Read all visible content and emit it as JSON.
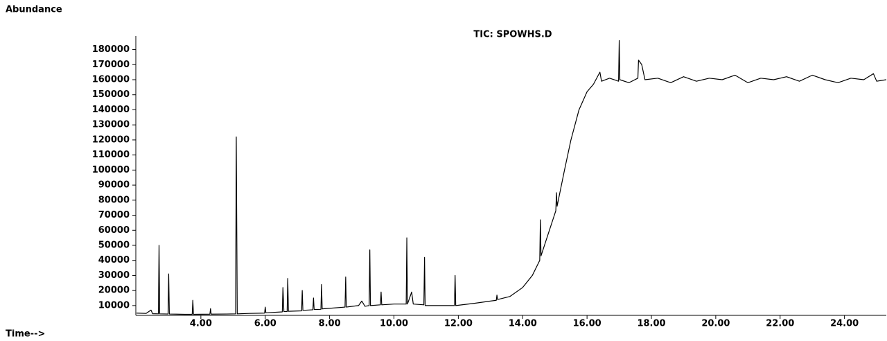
{
  "chart_data": {
    "type": "line",
    "title": "TIC: SPOWHS.D",
    "ylabel": "Abundance",
    "xlabel": "Time-->",
    "x": [
      2.0,
      2.3,
      2.45,
      2.5,
      2.68,
      2.7,
      2.72,
      2.98,
      3.0,
      3.02,
      3.5,
      3.73,
      3.75,
      3.77,
      4.28,
      4.3,
      4.32,
      4.8,
      5.08,
      5.1,
      5.13,
      5.5,
      5.98,
      6.0,
      6.02,
      6.53,
      6.55,
      6.58,
      6.68,
      6.7,
      6.72,
      7.13,
      7.15,
      7.17,
      7.48,
      7.5,
      7.52,
      7.73,
      7.75,
      7.77,
      8.2,
      8.48,
      8.5,
      8.52,
      8.9,
      9.0,
      9.1,
      9.23,
      9.25,
      9.27,
      9.58,
      9.6,
      9.62,
      10.0,
      10.38,
      10.4,
      10.42,
      10.55,
      10.6,
      10.93,
      10.95,
      10.97,
      11.5,
      11.88,
      11.9,
      11.92,
      12.5,
      13.0,
      13.18,
      13.2,
      13.22,
      13.6,
      14.0,
      14.3,
      14.53,
      14.55,
      14.57,
      14.8,
      15.03,
      15.05,
      15.07,
      15.3,
      15.5,
      15.75,
      16.0,
      16.2,
      16.4,
      16.45,
      16.7,
      16.98,
      17.0,
      17.02,
      17.3,
      17.58,
      17.6,
      17.7,
      17.8,
      18.2,
      18.6,
      19.0,
      19.4,
      19.8,
      20.2,
      20.6,
      21.0,
      21.4,
      21.8,
      22.2,
      22.6,
      23.0,
      23.4,
      23.8,
      24.2,
      24.6,
      24.9,
      25.0,
      25.3
    ],
    "series": [
      {
        "color": "#000000",
        "values": [
          5000,
          4800,
          7000,
          4600,
          4500,
          50000,
          4500,
          4400,
          31000,
          4400,
          4200,
          4200,
          13500,
          4200,
          4300,
          8000,
          4300,
          4400,
          4500,
          122000,
          4500,
          4800,
          5000,
          9000,
          5200,
          5800,
          22000,
          6000,
          6000,
          28000,
          6200,
          6500,
          20000,
          6800,
          7200,
          15000,
          7400,
          7500,
          24000,
          7800,
          8500,
          9000,
          29000,
          9000,
          10000,
          13000,
          9500,
          10000,
          47000,
          10000,
          10500,
          19000,
          10500,
          11000,
          11000,
          55000,
          11000,
          19000,
          11000,
          10500,
          42000,
          10000,
          10000,
          10000,
          30000,
          10000,
          11500,
          13000,
          13500,
          17000,
          14000,
          16000,
          22000,
          30000,
          40000,
          67000,
          43000,
          58000,
          73000,
          85000,
          76000,
          100000,
          120000,
          140000,
          152000,
          157000,
          165000,
          159000,
          161000,
          159000,
          186000,
          160000,
          158000,
          161000,
          173000,
          170000,
          160000,
          161000,
          158000,
          162000,
          159000,
          161000,
          160000,
          163000,
          158000,
          161000,
          160000,
          162000,
          159000,
          163000,
          160000,
          158000,
          161000,
          160000,
          164000,
          159000,
          160000
        ]
      }
    ],
    "xlim": [
      2,
      25.3
    ],
    "ylim": [
      3500,
      189000
    ],
    "xticks": [
      {
        "value": 4,
        "label": "4.00"
      },
      {
        "value": 6,
        "label": "6.00"
      },
      {
        "value": 8,
        "label": "8.00"
      },
      {
        "value": 10,
        "label": "10.00"
      },
      {
        "value": 12,
        "label": "12.00"
      },
      {
        "value": 14,
        "label": "14.00"
      },
      {
        "value": 16,
        "label": "16.00"
      },
      {
        "value": 18,
        "label": "18.00"
      },
      {
        "value": 20,
        "label": "20.00"
      },
      {
        "value": 22,
        "label": "22.00"
      },
      {
        "value": 24,
        "label": "24.00"
      }
    ],
    "yticks": [
      10000,
      20000,
      30000,
      40000,
      50000,
      60000,
      70000,
      80000,
      90000,
      100000,
      110000,
      120000,
      130000,
      140000,
      150000,
      160000,
      170000,
      180000
    ]
  }
}
